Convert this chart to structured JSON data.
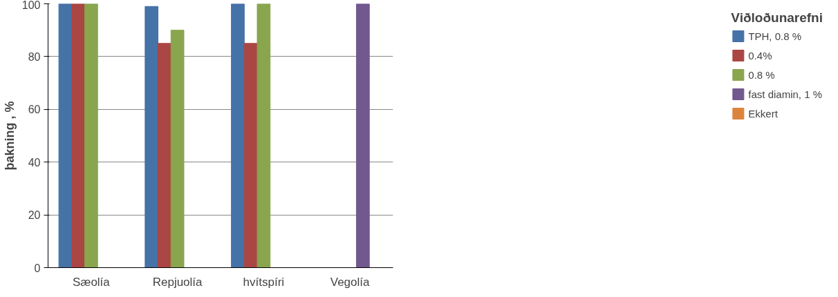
{
  "chart_data": {
    "type": "bar",
    "ylabel": "þakning , %",
    "legend_title": "Viðloðunarefni",
    "categories": [
      "Sæolía",
      "Repjuolía",
      "hvítspíri",
      "Vegolía"
    ],
    "series": [
      {
        "name": "TPH, 0.8 %",
        "color": "#4572a7",
        "values": [
          100,
          99,
          100,
          null
        ]
      },
      {
        "name": "0.4%",
        "color": "#aa4643",
        "values": [
          100,
          85,
          85,
          null
        ]
      },
      {
        "name": "0.8 %",
        "color": "#89a54e",
        "values": [
          100,
          90,
          100,
          null
        ]
      },
      {
        "name": "fast diamin, 1 %",
        "color": "#71588f",
        "values": [
          null,
          null,
          null,
          100
        ]
      },
      {
        "name": "Ekkert",
        "color": "#db843d",
        "values": [
          null,
          null,
          null,
          null
        ]
      }
    ],
    "ylim": [
      0,
      100
    ],
    "yticks": [
      0,
      20,
      40,
      60,
      80,
      100
    ],
    "grid": "y",
    "legend": "right"
  }
}
